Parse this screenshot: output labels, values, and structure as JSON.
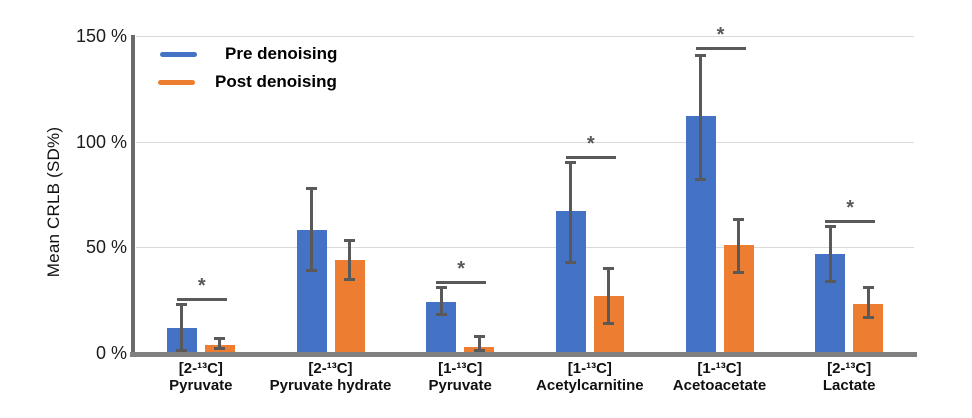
{
  "chart_data": {
    "type": "bar",
    "title": "",
    "ylabel": "Mean CRLB (SD%)",
    "xlabel": "",
    "ylim": [
      0,
      150
    ],
    "grid": true,
    "legend_position": "top-left",
    "y_ticks": [
      {
        "value": 0,
        "label": "0 %"
      },
      {
        "value": 50,
        "label": "50 %"
      },
      {
        "value": 100,
        "label": "100 %"
      },
      {
        "value": 150,
        "label": "150 %"
      }
    ],
    "gridline_values": [
      50,
      100,
      150
    ],
    "categories": [
      {
        "line1": "[2-¹³C]",
        "line2": "Pyruvate"
      },
      {
        "line1": "[2-¹³C]",
        "line2": "Pyruvate hydrate"
      },
      {
        "line1": "[1-¹³C]",
        "line2": "Pyruvate"
      },
      {
        "line1": "[1-¹³C]",
        "line2": "Acetylcarnitine"
      },
      {
        "line1": "[1-¹³C]",
        "line2": "Acetoacetate"
      },
      {
        "line1": "[2-¹³C]",
        "line2": "Lactate"
      }
    ],
    "series": [
      {
        "name": "Pre denoising",
        "color": "#4472C4",
        "values": [
          12,
          58,
          24,
          67,
          112,
          47
        ],
        "err_low": [
          1,
          39,
          18,
          43,
          82,
          34
        ],
        "err_high": [
          23,
          78,
          31,
          90,
          141,
          60
        ]
      },
      {
        "name": "Post denoising",
        "color": "#ED7D31",
        "values": [
          4,
          44,
          3,
          27,
          51,
          23
        ],
        "err_low": [
          2,
          35,
          1,
          14,
          38,
          17
        ],
        "err_high": [
          7,
          53,
          8,
          40,
          63,
          31
        ]
      }
    ],
    "significance_marker": "*",
    "significance": [
      {
        "category_index": 0,
        "height_pct": 26
      },
      {
        "category_index": 2,
        "height_pct": 34
      },
      {
        "category_index": 3,
        "height_pct": 93
      },
      {
        "category_index": 4,
        "height_pct": 145
      },
      {
        "category_index": 5,
        "height_pct": 63
      }
    ]
  },
  "colors": {
    "pre_series": "#4472C4",
    "post_series": "#ED7D31",
    "error_bar": "#595959",
    "axis_line": "#6a6a6a",
    "baseline": "#808080",
    "gridline": "#d9d9d9",
    "text": "#111111"
  }
}
